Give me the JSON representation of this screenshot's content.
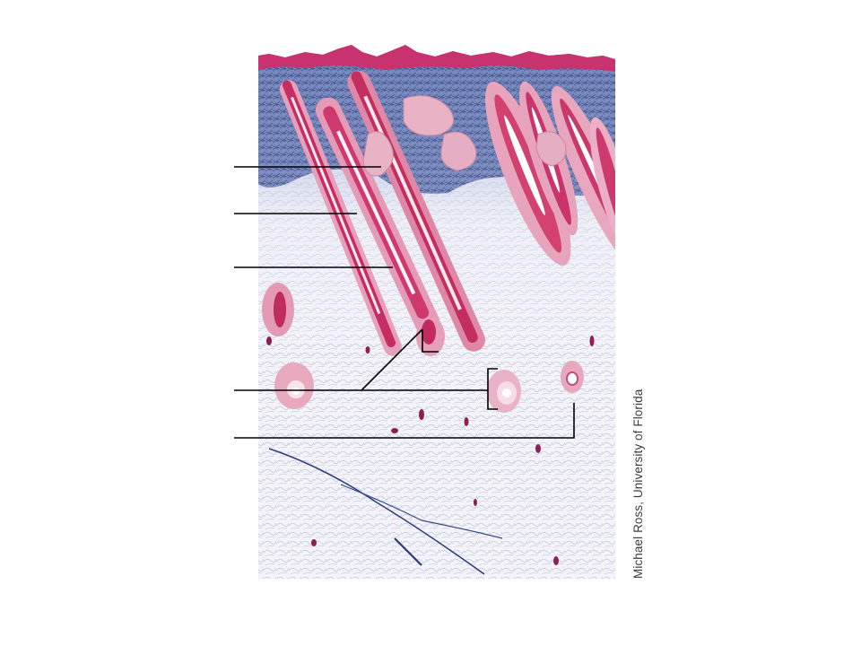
{
  "figure": {
    "type": "histology-micrograph-labeling-diagram",
    "image": {
      "subject": "skin section with hair follicles and surrounding connective tissue",
      "stain_colors": {
        "epidermis": "#c8326e",
        "hair_follicle": "#d94a7a",
        "follicle_pale": "#eaa8bd",
        "connective_tissue_blue": "#4a64a6",
        "hypodermis_background": "#eef0f8",
        "vessels": "#8e1f52"
      }
    },
    "leader_lines": {
      "color": "#000000",
      "count": 5
    },
    "labels": [
      {
        "id": "label-1",
        "text": ""
      },
      {
        "id": "label-2",
        "text": ""
      },
      {
        "id": "label-3",
        "text": ""
      },
      {
        "id": "label-4",
        "text": ""
      },
      {
        "id": "label-5",
        "text": ""
      }
    ],
    "credit": "Michael Ross, University of Florida"
  }
}
